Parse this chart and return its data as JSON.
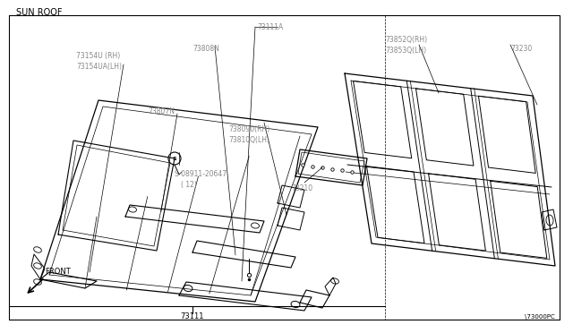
{
  "title": "SUN ROOF",
  "bg": "#ffffff",
  "lc": "#000000",
  "part_bottom": "73111",
  "part_br": "\\73000PC",
  "gray": "#888888"
}
